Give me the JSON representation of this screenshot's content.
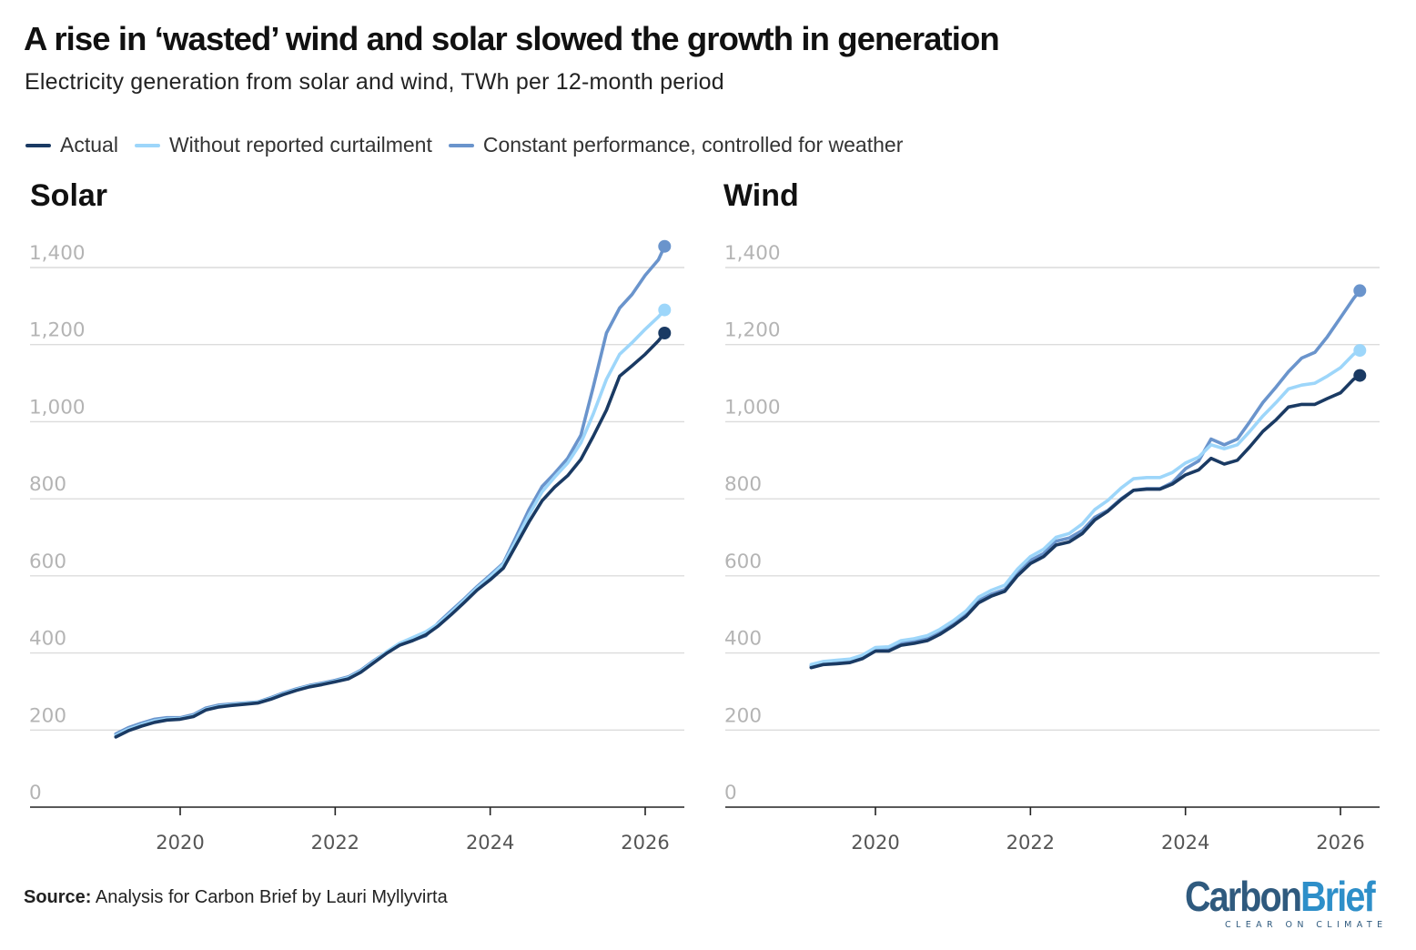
{
  "title": "A rise in ‘wasted’ wind and solar slowed the growth in generation",
  "subtitle": "Electricity generation from solar and wind, TWh per 12-month period",
  "legend": [
    {
      "label": "Actual",
      "color": "#1a3a63"
    },
    {
      "label": "Without reported curtailment",
      "color": "#9dd6fa"
    },
    {
      "label": "Constant performance, controlled for weather",
      "color": "#6a94cc"
    }
  ],
  "source": {
    "label": "Source:",
    "text": "Analysis for Carbon Brief by Lauri Myllyvirta"
  },
  "logo": {
    "carbon": "Carbon",
    "brief": "Brief",
    "tagline": "CLEAR ON CLIMATE"
  },
  "chart_data": [
    {
      "type": "line",
      "title": "Solar",
      "xlabel": "",
      "ylabel": "",
      "ylim": [
        0,
        1400
      ],
      "yticks": [
        0,
        200,
        400,
        600,
        800,
        1000,
        1200,
        1400
      ],
      "xticks": [
        2020,
        2022,
        2024,
        2026
      ],
      "grid": true,
      "series": [
        {
          "name": "Actual",
          "color": "#1a3a63",
          "x": [
            2019.17,
            2019.33,
            2019.5,
            2019.67,
            2019.83,
            2020.0,
            2020.17,
            2020.33,
            2020.5,
            2020.67,
            2020.83,
            2021.0,
            2021.17,
            2021.33,
            2021.5,
            2021.67,
            2021.83,
            2022.0,
            2022.17,
            2022.33,
            2022.5,
            2022.67,
            2022.83,
            2023.0,
            2023.17,
            2023.33,
            2023.5,
            2023.67,
            2023.83,
            2024.0,
            2024.17,
            2024.33,
            2024.5,
            2024.67,
            2024.83,
            2025.0,
            2025.17,
            2025.33,
            2025.5,
            2025.67,
            2025.83,
            2026.0,
            2026.17,
            2026.25
          ],
          "y": [
            182,
            198,
            210,
            220,
            226,
            228,
            235,
            252,
            260,
            264,
            267,
            270,
            280,
            292,
            303,
            312,
            318,
            325,
            333,
            350,
            375,
            400,
            420,
            432,
            447,
            470,
            500,
            532,
            563,
            590,
            620,
            678,
            740,
            795,
            830,
            860,
            902,
            962,
            1030,
            1118,
            1145,
            1175,
            1210,
            1230
          ]
        },
        {
          "name": "Without reported curtailment",
          "color": "#9dd6fa",
          "x": [
            2019.17,
            2019.33,
            2019.5,
            2019.67,
            2019.83,
            2020.0,
            2020.17,
            2020.33,
            2020.5,
            2020.67,
            2020.83,
            2021.0,
            2021.17,
            2021.33,
            2021.5,
            2021.67,
            2021.83,
            2022.0,
            2022.17,
            2022.33,
            2022.5,
            2022.67,
            2022.83,
            2023.0,
            2023.17,
            2023.33,
            2023.5,
            2023.67,
            2023.83,
            2024.0,
            2024.17,
            2024.33,
            2024.5,
            2024.67,
            2024.83,
            2025.0,
            2025.17,
            2025.33,
            2025.5,
            2025.67,
            2025.83,
            2026.0,
            2026.17,
            2026.25
          ],
          "y": [
            186,
            202,
            214,
            224,
            229,
            230,
            237,
            254,
            262,
            266,
            269,
            272,
            282,
            294,
            305,
            314,
            320,
            327,
            336,
            353,
            378,
            404,
            425,
            440,
            455,
            476,
            506,
            538,
            569,
            598,
            630,
            690,
            758,
            818,
            856,
            893,
            945,
            1020,
            1110,
            1175,
            1205,
            1240,
            1272,
            1290
          ]
        },
        {
          "name": "Constant performance, controlled for weather",
          "color": "#6a94cc",
          "x": [
            2019.17,
            2019.33,
            2019.5,
            2019.67,
            2019.83,
            2020.0,
            2020.17,
            2020.33,
            2020.5,
            2020.67,
            2020.83,
            2021.0,
            2021.17,
            2021.33,
            2021.5,
            2021.67,
            2021.83,
            2022.0,
            2022.17,
            2022.33,
            2022.5,
            2022.67,
            2022.83,
            2023.0,
            2023.17,
            2023.33,
            2023.5,
            2023.67,
            2023.83,
            2024.0,
            2024.17,
            2024.33,
            2024.5,
            2024.67,
            2024.83,
            2025.0,
            2025.17,
            2025.33,
            2025.5,
            2025.67,
            2025.83,
            2026.0,
            2026.17,
            2026.25
          ],
          "y": [
            190,
            206,
            218,
            228,
            232,
            232,
            240,
            257,
            265,
            268,
            270,
            273,
            284,
            296,
            307,
            316,
            322,
            329,
            338,
            355,
            380,
            403,
            420,
            433,
            445,
            478,
            510,
            541,
            572,
            602,
            633,
            700,
            772,
            832,
            866,
            905,
            965,
            1090,
            1230,
            1295,
            1330,
            1380,
            1420,
            1455
          ]
        }
      ]
    },
    {
      "type": "line",
      "title": "Wind",
      "xlabel": "",
      "ylabel": "",
      "ylim": [
        0,
        1400
      ],
      "yticks": [
        0,
        200,
        400,
        600,
        800,
        1000,
        1200,
        1400
      ],
      "xticks": [
        2020,
        2022,
        2024,
        2026
      ],
      "grid": true,
      "series": [
        {
          "name": "Actual",
          "color": "#1a3a63",
          "x": [
            2019.17,
            2019.33,
            2019.5,
            2019.67,
            2019.83,
            2020.0,
            2020.17,
            2020.33,
            2020.5,
            2020.67,
            2020.83,
            2021.0,
            2021.17,
            2021.33,
            2021.5,
            2021.67,
            2021.83,
            2022.0,
            2022.17,
            2022.33,
            2022.5,
            2022.67,
            2022.83,
            2023.0,
            2023.17,
            2023.33,
            2023.5,
            2023.67,
            2023.83,
            2024.0,
            2024.17,
            2024.33,
            2024.5,
            2024.67,
            2024.83,
            2025.0,
            2025.17,
            2025.33,
            2025.5,
            2025.67,
            2025.83,
            2026.0,
            2026.17,
            2026.25
          ],
          "y": [
            362,
            370,
            372,
            375,
            385,
            405,
            405,
            420,
            425,
            432,
            448,
            470,
            495,
            530,
            548,
            560,
            600,
            632,
            650,
            680,
            688,
            710,
            745,
            768,
            798,
            822,
            825,
            825,
            838,
            862,
            875,
            905,
            890,
            900,
            935,
            975,
            1005,
            1038,
            1045,
            1045,
            1060,
            1075,
            1110,
            1120
          ]
        },
        {
          "name": "Without reported curtailment",
          "color": "#9dd6fa",
          "x": [
            2019.17,
            2019.33,
            2019.5,
            2019.67,
            2019.83,
            2020.0,
            2020.17,
            2020.33,
            2020.5,
            2020.67,
            2020.83,
            2021.0,
            2021.17,
            2021.33,
            2021.5,
            2021.67,
            2021.83,
            2022.0,
            2022.17,
            2022.33,
            2022.5,
            2022.67,
            2022.83,
            2023.0,
            2023.17,
            2023.33,
            2023.5,
            2023.67,
            2023.83,
            2024.0,
            2024.17,
            2024.33,
            2024.5,
            2024.67,
            2024.83,
            2025.0,
            2025.17,
            2025.33,
            2025.5,
            2025.67,
            2025.83,
            2026.0,
            2026.17,
            2026.25
          ],
          "y": [
            370,
            378,
            381,
            384,
            394,
            414,
            416,
            432,
            437,
            445,
            461,
            483,
            509,
            545,
            563,
            576,
            617,
            650,
            669,
            700,
            710,
            735,
            772,
            796,
            828,
            852,
            855,
            855,
            868,
            893,
            908,
            940,
            930,
            940,
            975,
            1015,
            1050,
            1085,
            1095,
            1100,
            1118,
            1140,
            1175,
            1185
          ]
        },
        {
          "name": "Constant performance, controlled for weather",
          "color": "#6a94cc",
          "x": [
            2019.17,
            2019.33,
            2019.5,
            2019.67,
            2019.83,
            2020.0,
            2020.17,
            2020.33,
            2020.5,
            2020.67,
            2020.83,
            2021.0,
            2021.17,
            2021.33,
            2021.5,
            2021.67,
            2021.83,
            2022.0,
            2022.17,
            2022.33,
            2022.5,
            2022.67,
            2022.83,
            2023.0,
            2023.17,
            2023.33,
            2023.5,
            2023.67,
            2023.83,
            2024.0,
            2024.17,
            2024.33,
            2024.5,
            2024.67,
            2024.83,
            2025.0,
            2025.17,
            2025.33,
            2025.5,
            2025.67,
            2025.83,
            2026.0,
            2026.17,
            2026.25
          ],
          "y": [
            366,
            374,
            377,
            380,
            390,
            408,
            410,
            426,
            431,
            438,
            455,
            477,
            502,
            536,
            553,
            565,
            605,
            640,
            658,
            690,
            698,
            718,
            752,
            770,
            800,
            822,
            826,
            826,
            842,
            878,
            898,
            955,
            940,
            955,
            1000,
            1050,
            1090,
            1130,
            1165,
            1180,
            1220,
            1270,
            1320,
            1340
          ]
        }
      ]
    }
  ]
}
